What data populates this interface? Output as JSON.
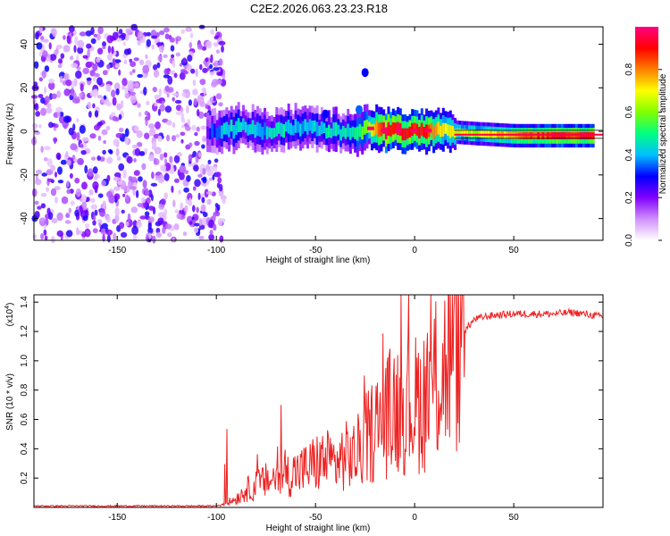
{
  "chart_data": [
    {
      "type": "heatmap",
      "title": "C2E2.2026.063.23.23.R18",
      "xlabel": "Height of straight line (km)",
      "ylabel": "Frequency (Hz)",
      "xlim": [
        -192,
        95
      ],
      "ylim": [
        -50,
        48
      ],
      "xticks": [
        "-150",
        "-100",
        "-50",
        "0",
        "50"
      ],
      "xtick_values": [
        -150,
        -100,
        -50,
        0,
        50
      ],
      "yticks": [
        "-40",
        "-20",
        "0",
        "20",
        "40"
      ],
      "ytick_values": [
        -40,
        -20,
        0,
        20,
        40
      ],
      "colorbar": {
        "label": "Normalized spectral amplitude",
        "range": [
          0,
          1
        ],
        "ticks": [
          "0.0",
          "0.2",
          "0.4",
          "0.6",
          "0.8"
        ],
        "tick_values": [
          0.0,
          0.2,
          0.4,
          0.6,
          0.8
        ],
        "colors": [
          "#ffffff",
          "#d090ff",
          "#8000ff",
          "#0000ff",
          "#00c0ff",
          "#00ff80",
          "#80ff00",
          "#ffff00",
          "#ff8000",
          "#ff0000",
          "#ff0080"
        ]
      },
      "noise_region": {
        "x_from": -192,
        "x_to": -100,
        "level": "low (0.0-0.3), scattered across all frequencies"
      },
      "signal_band": [
        {
          "x": -105,
          "f": -1,
          "amp": 0.25
        },
        {
          "x": -95,
          "f": 1,
          "amp": 0.45
        },
        {
          "x": -85,
          "f": 2,
          "amp": 0.4
        },
        {
          "x": -75,
          "f": 0,
          "amp": 0.4
        },
        {
          "x": -65,
          "f": 1,
          "amp": 0.45
        },
        {
          "x": -55,
          "f": 2,
          "amp": 0.4
        },
        {
          "x": -45,
          "f": 0,
          "amp": 0.45
        },
        {
          "x": -35,
          "f": -1,
          "amp": 0.45
        },
        {
          "x": -25,
          "f": 1,
          "amp": 0.6
        },
        {
          "x": -15,
          "f": 0,
          "amp": 0.95
        },
        {
          "x": -5,
          "f": 0,
          "amp": 0.9
        },
        {
          "x": 5,
          "f": 0,
          "amp": 0.9
        },
        {
          "x": 15,
          "f": 0,
          "amp": 0.7
        },
        {
          "x": 30,
          "f": -1,
          "amp": 0.65
        },
        {
          "x": 50,
          "f": -2,
          "amp": 0.8
        },
        {
          "x": 70,
          "f": -2,
          "amp": 0.9
        },
        {
          "x": 90,
          "f": -2,
          "amp": 0.9
        }
      ],
      "features": [
        {
          "x": -25,
          "f": 27,
          "amp": 0.3
        },
        {
          "x": -45,
          "f": 8,
          "amp": 0.3
        },
        {
          "x": -28,
          "f": 10,
          "amp": 0.35
        }
      ]
    },
    {
      "type": "line",
      "xlabel": "Height of straight line (km)",
      "ylabel": "SNR (10 * v/v)",
      "y_scale_label": "(x10",
      "y_scale_exp": "4",
      "y_scale_close": ")",
      "xlim": [
        -192,
        95
      ],
      "ylim": [
        0,
        1.45
      ],
      "xticks": [
        "-150",
        "-100",
        "-50",
        "0",
        "50"
      ],
      "xtick_values": [
        -150,
        -100,
        -50,
        0,
        50
      ],
      "yticks": [
        "0.2",
        "0.4",
        "0.6",
        "0.8",
        "1.0",
        "1.2",
        "1.4"
      ],
      "ytick_values": [
        0.2,
        0.4,
        0.6,
        0.8,
        1.0,
        1.2,
        1.4
      ],
      "series": [
        {
          "name": "SNR",
          "color": "#ee2222",
          "x": [
            -192,
            -150,
            -120,
            -100,
            -95,
            -90,
            -85,
            -80,
            -75,
            -70,
            -65,
            -60,
            -55,
            -50,
            -45,
            -40,
            -35,
            -30,
            -25,
            -20,
            -15,
            -10,
            -5,
            0,
            5,
            10,
            15,
            20,
            25,
            30,
            35,
            40,
            50,
            60,
            70,
            80,
            90,
            95
          ],
          "values": [
            0.01,
            0.01,
            0.01,
            0.01,
            0.03,
            0.06,
            0.12,
            0.15,
            0.18,
            0.2,
            0.22,
            0.24,
            0.26,
            0.3,
            0.32,
            0.3,
            0.35,
            0.35,
            0.45,
            0.55,
            0.6,
            0.7,
            0.7,
            0.7,
            0.75,
            0.85,
            0.95,
            1.1,
            1.2,
            1.28,
            1.3,
            1.31,
            1.32,
            1.32,
            1.32,
            1.33,
            1.31,
            1.3
          ]
        }
      ]
    }
  ]
}
